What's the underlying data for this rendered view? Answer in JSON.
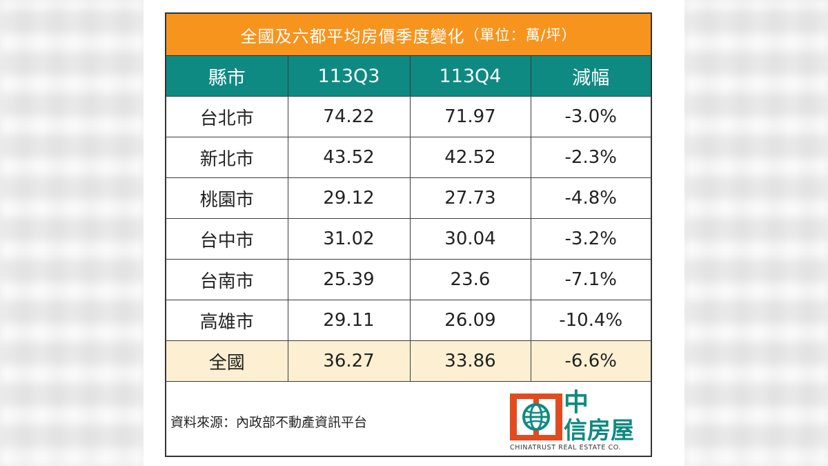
{
  "table": {
    "title": "全國及六都平均房價季度變化",
    "unit": "（單位：萬/坪）",
    "headers": [
      "縣市",
      "113Q3",
      "113Q4",
      "減幅"
    ],
    "rows": [
      [
        "台北市",
        "74.22",
        "71.97",
        "-3.0%"
      ],
      [
        "新北市",
        "43.52",
        "42.52",
        "-2.3%"
      ],
      [
        "桃園市",
        "29.12",
        "27.73",
        "-4.8%"
      ],
      [
        "台中市",
        "31.02",
        "30.04",
        "-3.2%"
      ],
      [
        "台南市",
        "25.39",
        "23.6",
        "-7.1%"
      ],
      [
        "高雄市",
        "29.11",
        "26.09",
        "-10.4%"
      ],
      [
        "全國",
        "36.27",
        "33.86",
        "-6.6%"
      ]
    ]
  },
  "footer": {
    "source": "資料來源：內政部不動產資訊平台"
  },
  "logo": {
    "line1": "中",
    "line2": "信房屋",
    "english": "CHINATRUST REAL ESTATE CO.",
    "colors": {
      "primary": "#e24a1f",
      "secondary": "#0e8a82"
    }
  },
  "colors": {
    "title_bg": "#f7941d",
    "header_bg": "#0e8a82",
    "total_row_bg": "#fdf0d2"
  }
}
